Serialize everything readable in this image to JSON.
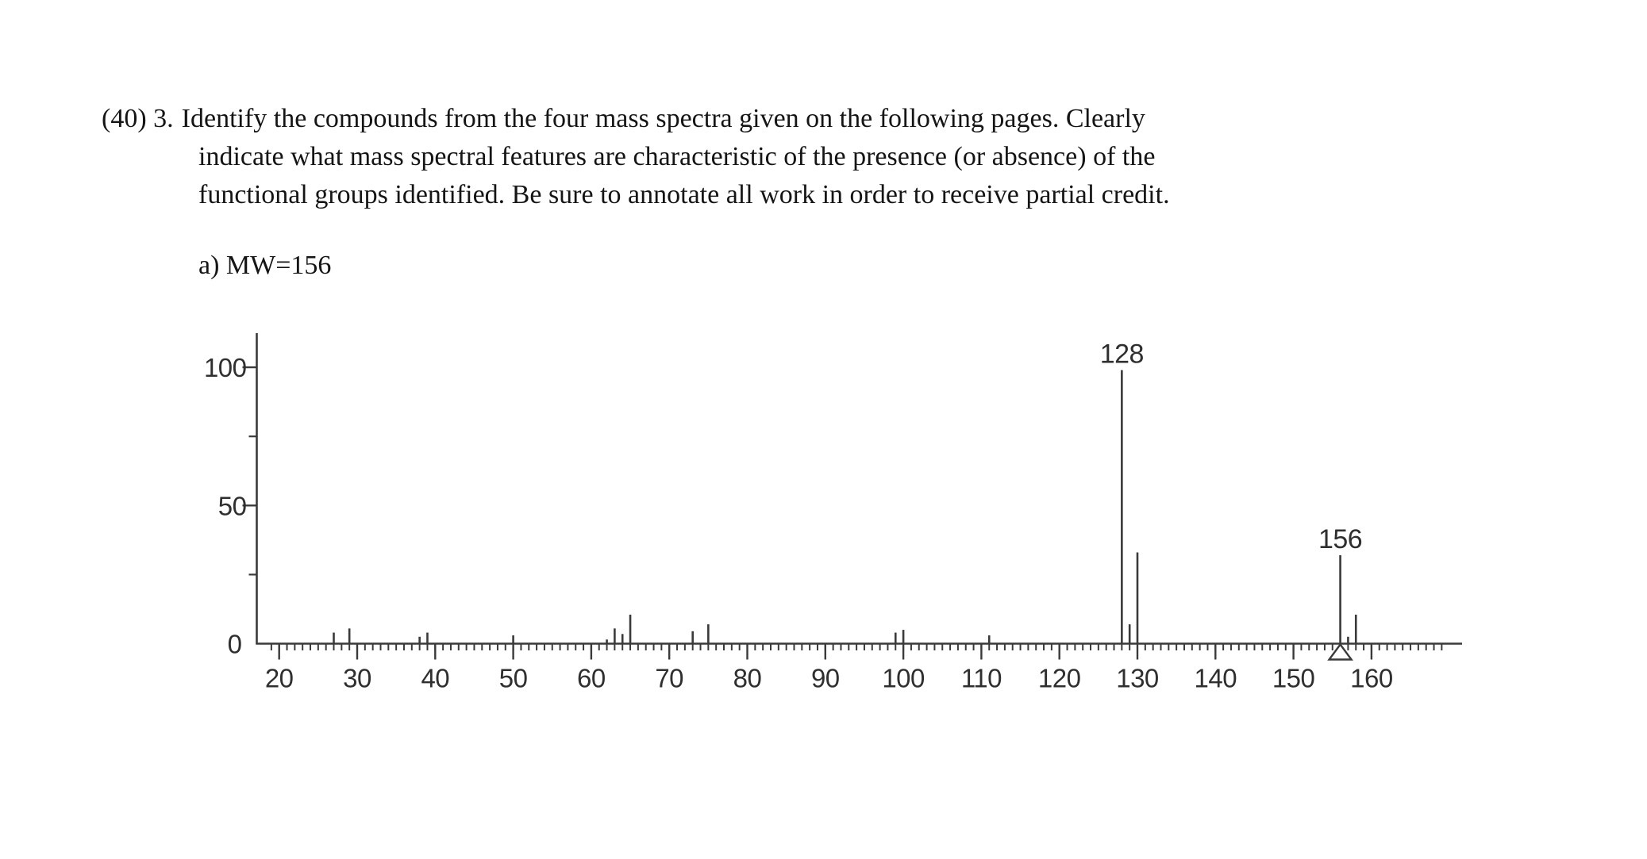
{
  "question": {
    "number": "(40) 3.",
    "lines": [
      "Identify the compounds from the four mass spectra given on the following pages. Clearly",
      "indicate what mass spectral features are characteristic of the presence (or absence) of the",
      "functional groups identified. Be sure to annotate all work in order to receive partial credit."
    ],
    "part_label": "a) MW=156"
  },
  "chart_data": {
    "type": "bar",
    "subtype": "mass-spectrum-stick-plot",
    "title": "",
    "ink_color": "#3a3a3a",
    "x_axis": {
      "labeled_ticks": [
        20,
        30,
        40,
        50,
        60,
        70,
        80,
        90,
        100,
        110,
        120,
        130,
        140,
        150,
        160
      ],
      "minor_tick_start": 19,
      "minor_tick_end": 169,
      "minor_tick_step": 1
    },
    "y_axis": {
      "labeled_ticks": [
        0,
        50,
        100
      ],
      "minor_ticks": [
        25,
        75
      ],
      "range": [
        0,
        100
      ]
    },
    "peaks": [
      {
        "mz": 27,
        "intensity": 4
      },
      {
        "mz": 29,
        "intensity": 5.5
      },
      {
        "mz": 38,
        "intensity": 2.5
      },
      {
        "mz": 39,
        "intensity": 4
      },
      {
        "mz": 50,
        "intensity": 3
      },
      {
        "mz": 62,
        "intensity": 1.5
      },
      {
        "mz": 63,
        "intensity": 5.5
      },
      {
        "mz": 64,
        "intensity": 3.5
      },
      {
        "mz": 65,
        "intensity": 10.5
      },
      {
        "mz": 73,
        "intensity": 4.5
      },
      {
        "mz": 75,
        "intensity": 7
      },
      {
        "mz": 99,
        "intensity": 4
      },
      {
        "mz": 100,
        "intensity": 5
      },
      {
        "mz": 111,
        "intensity": 3
      },
      {
        "mz": 128,
        "intensity": 99
      },
      {
        "mz": 129,
        "intensity": 7
      },
      {
        "mz": 130,
        "intensity": 33
      },
      {
        "mz": 156,
        "intensity": 32
      },
      {
        "mz": 157,
        "intensity": 2.5
      },
      {
        "mz": 158,
        "intensity": 10.5
      }
    ],
    "peak_labels": [
      {
        "mz": 128,
        "text": "128"
      },
      {
        "mz": 156,
        "text": "156"
      }
    ],
    "molecular_ion_marker_mz": 156
  }
}
